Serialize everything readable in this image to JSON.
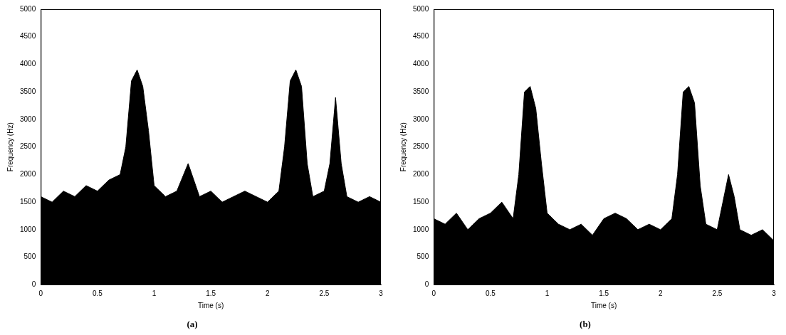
{
  "chart_data": [
    {
      "type": "area",
      "title": "(a)",
      "x_label": "Time (s)",
      "y_label": "Frequency (Hz)",
      "x": [
        0,
        0.1,
        0.2,
        0.3,
        0.4,
        0.5,
        0.6,
        0.7,
        0.75,
        0.8,
        0.85,
        0.9,
        0.95,
        1.0,
        1.1,
        1.2,
        1.3,
        1.4,
        1.5,
        1.6,
        1.7,
        1.8,
        1.9,
        2.0,
        2.1,
        2.15,
        2.2,
        2.25,
        2.3,
        2.35,
        2.4,
        2.5,
        2.55,
        2.6,
        2.65,
        2.7,
        2.8,
        2.9,
        3.0
      ],
      "values": [
        1600,
        1500,
        1700,
        1600,
        1800,
        1700,
        1900,
        2000,
        2500,
        3700,
        3900,
        3600,
        2800,
        1800,
        1600,
        1700,
        2200,
        1600,
        1700,
        1500,
        1600,
        1700,
        1600,
        1500,
        1700,
        2500,
        3700,
        3900,
        3600,
        2200,
        1600,
        1700,
        2200,
        3400,
        2200,
        1600,
        1500,
        1600,
        1500
      ],
      "color": "#000000",
      "xlim": [
        0,
        3
      ],
      "xticks": [
        0,
        0.5,
        1,
        1.5,
        2,
        2.5,
        3
      ],
      "ylim": [
        0,
        5000
      ],
      "yticks": [
        0,
        500,
        1000,
        1500,
        2000,
        2500,
        3000,
        3500,
        4000,
        4500,
        5000
      ],
      "grid": false
    },
    {
      "type": "area",
      "title": "(b)",
      "x_label": "Time (s)",
      "y_label": "Frequency (Hz)",
      "x": [
        0,
        0.1,
        0.2,
        0.3,
        0.4,
        0.5,
        0.6,
        0.7,
        0.75,
        0.8,
        0.85,
        0.9,
        0.95,
        1.0,
        1.1,
        1.2,
        1.3,
        1.4,
        1.5,
        1.6,
        1.7,
        1.8,
        1.9,
        2.0,
        2.1,
        2.15,
        2.2,
        2.25,
        2.3,
        2.35,
        2.4,
        2.5,
        2.55,
        2.6,
        2.65,
        2.7,
        2.8,
        2.9,
        3.0
      ],
      "values": [
        1200,
        1100,
        1300,
        1000,
        1200,
        1300,
        1500,
        1200,
        2000,
        3500,
        3600,
        3200,
        2200,
        1300,
        1100,
        1000,
        1100,
        900,
        1200,
        1300,
        1200,
        1000,
        1100,
        1000,
        1200,
        2000,
        3500,
        3600,
        3300,
        1800,
        1100,
        1000,
        1500,
        2000,
        1600,
        1000,
        900,
        1000,
        800
      ],
      "color": "#000000",
      "xlim": [
        0,
        3
      ],
      "xticks": [
        0,
        0.5,
        1,
        1.5,
        2,
        2.5,
        3
      ],
      "ylim": [
        0,
        5000
      ],
      "yticks": [
        0,
        500,
        1000,
        1500,
        2000,
        2500,
        3000,
        3500,
        4000,
        4500,
        5000
      ],
      "grid": false
    }
  ]
}
